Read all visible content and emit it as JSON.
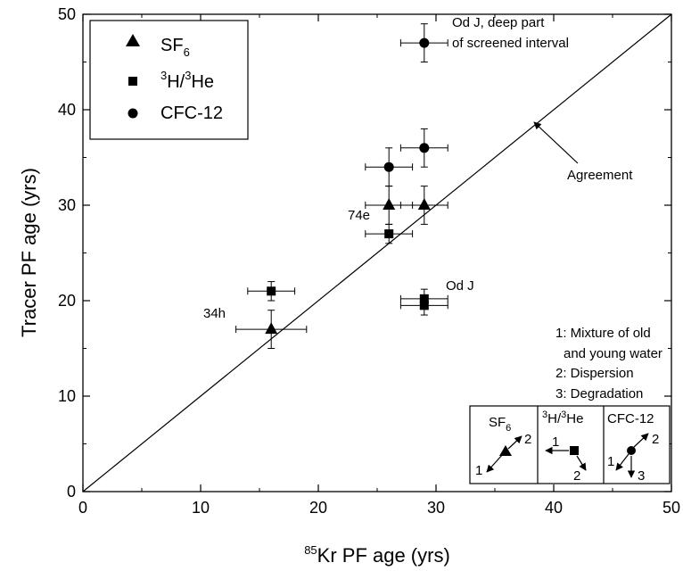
{
  "chart_data": {
    "type": "scatter",
    "xlabel": {
      "sup": "85",
      "text": "Kr PF age (yrs)"
    },
    "ylabel": "Tracer PF age (yrs)",
    "xlim": [
      0,
      50
    ],
    "ylim": [
      0,
      50
    ],
    "xticks": [
      0,
      10,
      20,
      30,
      40,
      50
    ],
    "yticks": [
      0,
      10,
      20,
      30,
      40,
      50
    ],
    "grid": false,
    "legend_position": "top-left",
    "series": [
      {
        "name": "SF6",
        "name_parts": {
          "main": "SF",
          "sub": "6"
        },
        "marker": "triangle",
        "points": [
          {
            "x": 16,
            "y": 17,
            "xerr": 3,
            "yerr": 2
          },
          {
            "x": 26,
            "y": 30,
            "xerr": 2,
            "yerr": 2
          },
          {
            "x": 29,
            "y": 30,
            "xerr": 2,
            "yerr": 2
          }
        ]
      },
      {
        "name": "3H/3He",
        "name_parts": {
          "sup1": "3",
          "a": "H/",
          "sup2": "3",
          "b": "He"
        },
        "marker": "square",
        "points": [
          {
            "x": 16,
            "y": 21,
            "xerr": 2,
            "yerr": 1
          },
          {
            "x": 26,
            "y": 27,
            "xerr": 2,
            "yerr": 1
          },
          {
            "x": 29,
            "y": 20.2,
            "xerr": 2,
            "yerr": 1
          },
          {
            "x": 29,
            "y": 19.5,
            "xerr": 2,
            "yerr": 1
          }
        ]
      },
      {
        "name": "CFC-12",
        "marker": "circle",
        "points": [
          {
            "x": 26,
            "y": 34,
            "xerr": 2,
            "yerr": 2
          },
          {
            "x": 29,
            "y": 36,
            "xerr": 2,
            "yerr": 2
          },
          {
            "x": 29,
            "y": 47,
            "xerr": 2,
            "yerr": 2
          }
        ]
      }
    ],
    "reference_line": {
      "from": [
        0,
        0
      ],
      "to": [
        50,
        50
      ],
      "label": "Agreement"
    },
    "annotations": [
      {
        "id": "ann-od-j-deep-1",
        "text": "Od J, deep part",
        "x": 29.8,
        "y": 48.7
      },
      {
        "id": "ann-od-j-deep-2",
        "text": "of screened interval",
        "x": 29.8,
        "y": 46.6
      },
      {
        "id": "ann-od-j",
        "text": "Od J",
        "x": 30.7,
        "y": 21.4
      },
      {
        "id": "ann-74e",
        "text": "74e",
        "x": 22.6,
        "y": 28.7
      },
      {
        "id": "ann-34h",
        "text": "34h",
        "x": 12.2,
        "y": 18.4
      },
      {
        "id": "ann-legend-1",
        "text": "1: Mixture of old",
        "x": 40.8,
        "y": 16.8
      },
      {
        "id": "ann-legend-1b",
        "text": "and young water",
        "x": 41.6,
        "y": 14.6
      },
      {
        "id": "ann-legend-2",
        "text": "2: Dispersion",
        "x": 40.8,
        "y": 12.5
      },
      {
        "id": "ann-legend-3",
        "text": "3: Degradation",
        "x": 40.8,
        "y": 10.4
      }
    ],
    "inset": {
      "panels": [
        {
          "title_parts": {
            "main": "SF",
            "sub": "6"
          },
          "marker": "triangle",
          "arrows": [
            "1",
            "2"
          ]
        },
        {
          "title_parts": {
            "sup1": "3",
            "a": "H/",
            "sup2": "3",
            "b": "He"
          },
          "marker": "square",
          "arrows": [
            "1",
            "2"
          ]
        },
        {
          "title": "CFC-12",
          "marker": "circle",
          "arrows": [
            "1",
            "2",
            "3"
          ]
        }
      ]
    }
  }
}
